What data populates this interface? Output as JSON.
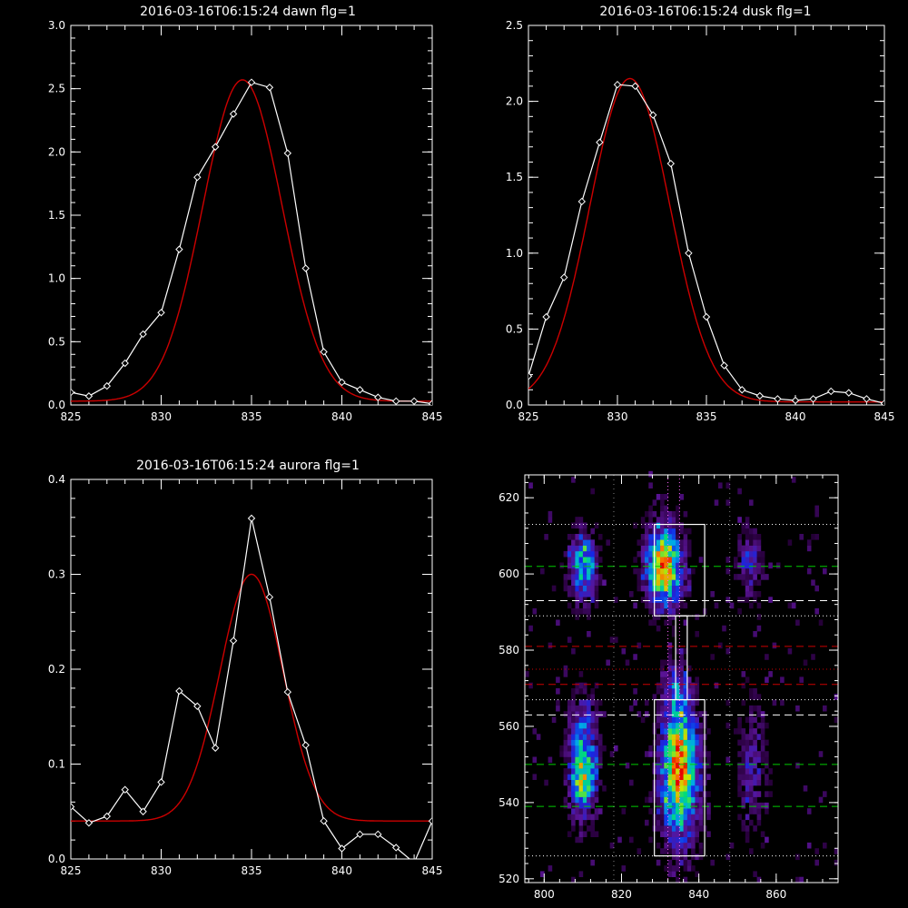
{
  "colors": {
    "background": "#000000",
    "data_line": "#ffffff",
    "fit_line": "#cc0000",
    "axes": "#ffffff",
    "guide_green": "#00cc00",
    "guide_red": "#cc0000",
    "guide_white": "#ffffff",
    "guide_magenta": "#ff66ff"
  },
  "chart_data": [
    {
      "type": "line",
      "title": "2016-03-16T06:15:24 dawn flg=1",
      "xlim": [
        825,
        845
      ],
      "ylim": [
        0,
        3.0
      ],
      "xticks": [
        825,
        830,
        835,
        840,
        845
      ],
      "yticks": [
        0.0,
        0.5,
        1.0,
        1.5,
        2.0,
        2.5,
        3.0
      ],
      "ytick_labels": [
        "0.0",
        "0.5",
        "1.0",
        "1.5",
        "2.0",
        "2.5",
        "3.0"
      ],
      "x": [
        825,
        826,
        827,
        828,
        829,
        830,
        831,
        832,
        833,
        834,
        835,
        836,
        837,
        838,
        839,
        840,
        841,
        842,
        843,
        844,
        845
      ],
      "series": [
        {
          "values": [
            0.1,
            0.07,
            0.15,
            0.33,
            0.56,
            0.73,
            1.23,
            1.8,
            2.04,
            2.3,
            2.55,
            2.51,
            1.99,
            1.08,
            0.42,
            0.18,
            0.12,
            0.06,
            0.03,
            0.03,
            0.01
          ],
          "markers": true
        },
        {
          "gaussian": {
            "amplitude": 2.54,
            "center": 834.5,
            "sigma": 2.2,
            "offset": 0.03
          }
        }
      ]
    },
    {
      "type": "line",
      "title": "2016-03-16T06:15:24 dusk flg=1",
      "xlim": [
        825,
        845
      ],
      "ylim": [
        0,
        2.5
      ],
      "xticks": [
        825,
        830,
        835,
        840,
        845
      ],
      "yticks": [
        0.0,
        0.5,
        1.0,
        1.5,
        2.0,
        2.5
      ],
      "ytick_labels": [
        "0.0",
        "0.5",
        "1.0",
        "1.5",
        "2.0",
        "2.5"
      ],
      "x": [
        825,
        826,
        827,
        828,
        829,
        830,
        831,
        832,
        833,
        834,
        835,
        836,
        837,
        838,
        839,
        840,
        841,
        842,
        843,
        844,
        845
      ],
      "series": [
        {
          "values": [
            0.19,
            0.58,
            0.84,
            1.34,
            1.73,
            2.11,
            2.1,
            1.91,
            1.59,
            1.0,
            0.58,
            0.26,
            0.1,
            0.06,
            0.04,
            0.03,
            0.04,
            0.09,
            0.08,
            0.04,
            0.01
          ],
          "markers": true
        },
        {
          "gaussian": {
            "amplitude": 2.13,
            "center": 830.7,
            "sigma": 2.25,
            "offset": 0.02
          }
        }
      ]
    },
    {
      "type": "line",
      "title": "2016-03-16T06:15:24 aurora flg=1",
      "xlim": [
        825,
        845
      ],
      "ylim": [
        0,
        0.4
      ],
      "xticks": [
        825,
        830,
        835,
        840,
        845
      ],
      "yticks": [
        0.0,
        0.1,
        0.2,
        0.3,
        0.4
      ],
      "ytick_labels": [
        "0.0",
        "0.1",
        "0.2",
        "0.3",
        "0.4"
      ],
      "x": [
        825,
        826,
        827,
        828,
        829,
        830,
        831,
        832,
        833,
        834,
        835,
        836,
        837,
        838,
        839,
        840,
        841,
        842,
        843,
        844,
        845
      ],
      "series": [
        {
          "values": [
            0.055,
            0.038,
            0.045,
            0.073,
            0.05,
            0.081,
            0.177,
            0.161,
            0.117,
            0.23,
            0.359,
            0.276,
            0.176,
            0.12,
            0.04,
            0.011,
            0.026,
            0.026,
            0.012,
            -0.004,
            0.04
          ],
          "markers": true
        },
        {
          "gaussian": {
            "amplitude": 0.26,
            "center": 835.0,
            "sigma": 1.75,
            "offset": 0.04
          }
        }
      ]
    },
    {
      "type": "heatmap",
      "xlim": [
        795,
        876
      ],
      "ylim": [
        519,
        626
      ],
      "xticks": [
        800,
        820,
        840,
        860
      ],
      "yticks": [
        520,
        540,
        560,
        580,
        600,
        620
      ],
      "blobs": [
        {
          "cx": 810,
          "cy": 602,
          "sx": 2.3,
          "sy": 6,
          "amp": 0.55
        },
        {
          "cx": 810,
          "cy": 551,
          "sx": 2.5,
          "sy": 10,
          "amp": 0.55
        },
        {
          "cx": 810,
          "cy": 545,
          "sx": 2,
          "sy": 4,
          "amp": 0.3
        },
        {
          "cx": 831,
          "cy": 602,
          "sx": 3,
          "sy": 7,
          "amp": 0.9
        },
        {
          "cx": 835,
          "cy": 549,
          "sx": 3.2,
          "sy": 12,
          "amp": 0.95
        },
        {
          "cx": 834,
          "cy": 570,
          "sx": 2,
          "sy": 4,
          "amp": 0.25
        },
        {
          "cx": 853,
          "cy": 603,
          "sx": 2,
          "sy": 6,
          "amp": 0.3
        },
        {
          "cx": 854,
          "cy": 548,
          "sx": 2.5,
          "sy": 12,
          "amp": 0.2
        }
      ],
      "dotted_white_h": [
        613,
        589,
        567,
        526
      ],
      "dashed_green_h": [
        602,
        550,
        539
      ],
      "dashed_white_h": [
        593,
        563
      ],
      "dashed_red_h": [
        581,
        571
      ],
      "dotted_red_h": [
        575
      ],
      "dotted_magenta_v": [
        832,
        835
      ],
      "dotted_white_v": [
        818,
        848
      ],
      "boxes": [
        {
          "x0": 828.5,
          "x1": 841.5,
          "y0": 589,
          "y1": 613
        },
        {
          "x0": 828.5,
          "x1": 841.5,
          "y0": 526,
          "y1": 567
        }
      ],
      "connector": {
        "x0": 834,
        "x1": 837,
        "y0": 567,
        "y1": 589
      }
    }
  ]
}
